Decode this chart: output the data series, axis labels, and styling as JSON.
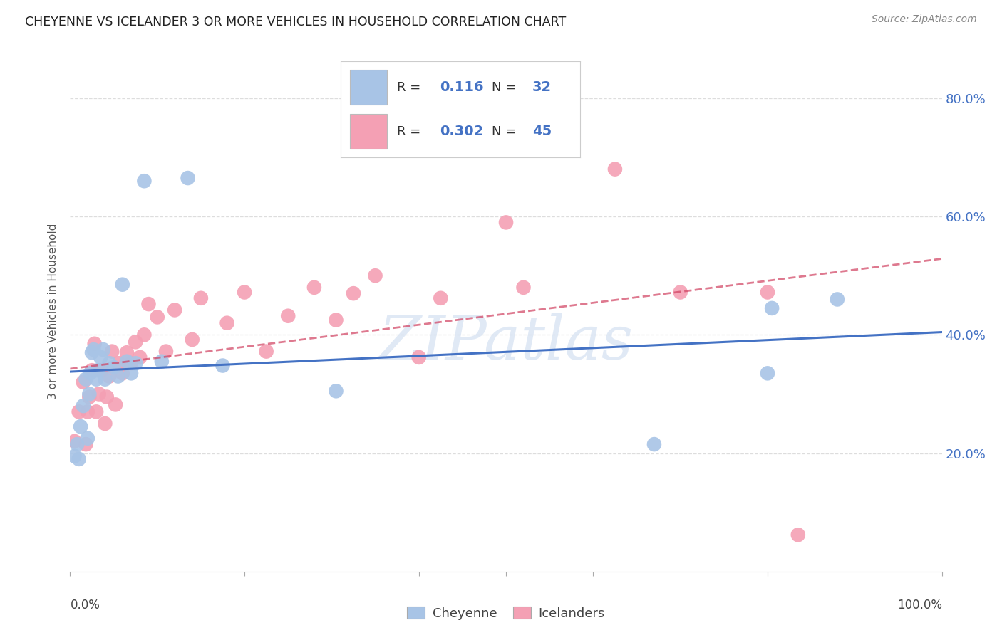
{
  "title": "CHEYENNE VS ICELANDER 3 OR MORE VEHICLES IN HOUSEHOLD CORRELATION CHART",
  "source": "Source: ZipAtlas.com",
  "ylabel": "3 or more Vehicles in Household",
  "cheyenne_R": "0.116",
  "cheyenne_N": "32",
  "icelander_R": "0.302",
  "icelander_N": "45",
  "xlim": [
    0.0,
    1.0
  ],
  "ylim": [
    0.0,
    0.88
  ],
  "yticks": [
    0.2,
    0.4,
    0.6,
    0.8
  ],
  "ytick_labels": [
    "20.0%",
    "40.0%",
    "60.0%",
    "80.0%"
  ],
  "cheyenne_color": "#a8c4e6",
  "icelander_color": "#f4a0b4",
  "cheyenne_line_color": "#4472c4",
  "icelander_line_color": "#d04060",
  "watermark": "ZIPatlas",
  "cheyenne_x": [
    0.005,
    0.008,
    0.01,
    0.012,
    0.015,
    0.018,
    0.02,
    0.022,
    0.023,
    0.025,
    0.027,
    0.03,
    0.032,
    0.035,
    0.038,
    0.04,
    0.045,
    0.05,
    0.055,
    0.06,
    0.065,
    0.07,
    0.075,
    0.085,
    0.105,
    0.135,
    0.175,
    0.305,
    0.67,
    0.8,
    0.805,
    0.88
  ],
  "cheyenne_y": [
    0.195,
    0.215,
    0.19,
    0.245,
    0.28,
    0.325,
    0.225,
    0.3,
    0.335,
    0.37,
    0.375,
    0.325,
    0.34,
    0.362,
    0.375,
    0.325,
    0.352,
    0.345,
    0.33,
    0.485,
    0.355,
    0.335,
    0.352,
    0.66,
    0.355,
    0.665,
    0.348,
    0.305,
    0.215,
    0.335,
    0.445,
    0.46
  ],
  "icelander_x": [
    0.005,
    0.01,
    0.015,
    0.018,
    0.02,
    0.022,
    0.025,
    0.028,
    0.03,
    0.033,
    0.036,
    0.04,
    0.042,
    0.045,
    0.048,
    0.052,
    0.056,
    0.06,
    0.065,
    0.07,
    0.075,
    0.08,
    0.085,
    0.09,
    0.1,
    0.11,
    0.12,
    0.14,
    0.15,
    0.18,
    0.2,
    0.225,
    0.25,
    0.28,
    0.305,
    0.325,
    0.35,
    0.4,
    0.425,
    0.5,
    0.52,
    0.625,
    0.7,
    0.8,
    0.835
  ],
  "icelander_y": [
    0.22,
    0.27,
    0.32,
    0.215,
    0.27,
    0.295,
    0.34,
    0.385,
    0.27,
    0.3,
    0.34,
    0.25,
    0.295,
    0.33,
    0.372,
    0.282,
    0.352,
    0.335,
    0.37,
    0.352,
    0.388,
    0.362,
    0.4,
    0.452,
    0.43,
    0.372,
    0.442,
    0.392,
    0.462,
    0.42,
    0.472,
    0.372,
    0.432,
    0.48,
    0.425,
    0.47,
    0.5,
    0.362,
    0.462,
    0.59,
    0.48,
    0.68,
    0.472,
    0.472,
    0.062
  ],
  "background_color": "#ffffff",
  "grid_color": "#dddddd"
}
